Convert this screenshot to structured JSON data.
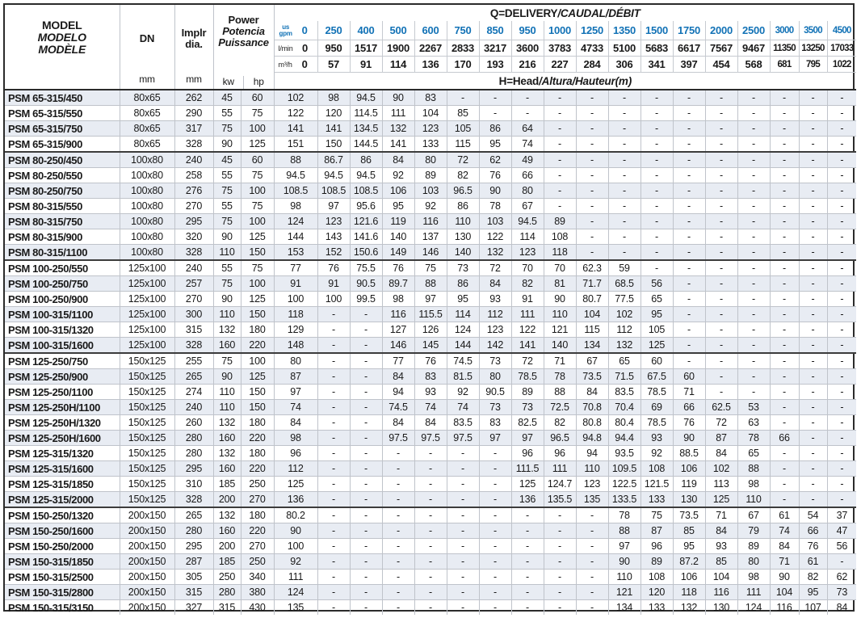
{
  "table": {
    "colors": {
      "accent_blue": "#1272b6",
      "stripe_row": "#e8ecf3"
    },
    "title_q": {
      "plain": "Q=DELIVERY",
      "italic": "/CAUDAL/DÉBIT"
    },
    "title_h": {
      "plain": "H=Head",
      "italic": "/Altura/Hauteur(m)"
    },
    "model_header": [
      "MODEL",
      "MODELO",
      "MODÈLE"
    ],
    "dn_label": "DN",
    "implr_label": [
      "Implr",
      "dia."
    ],
    "power_labels": [
      "Power",
      "Potencia",
      "Puissance"
    ],
    "unit_mm": "mm",
    "unit_kw": "kw",
    "unit_hp": "hp",
    "flow_units": {
      "gpm_top": "us",
      "gpm_bottom": "gpm",
      "lmin": "l/min",
      "m3h": "m³/h"
    },
    "flow_gpm": [
      "0",
      "250",
      "400",
      "500",
      "600",
      "750",
      "850",
      "950",
      "1000",
      "1250",
      "1350",
      "1500",
      "1750",
      "2000",
      "2500",
      "3000",
      "3500",
      "4500"
    ],
    "flow_lmin": [
      "0",
      "950",
      "1517",
      "1900",
      "2267",
      "2833",
      "3217",
      "3600",
      "3783",
      "4733",
      "5100",
      "5683",
      "6617",
      "7567",
      "9467",
      "11350",
      "13250",
      "17033"
    ],
    "flow_m3h": [
      "0",
      "57",
      "91",
      "114",
      "136",
      "170",
      "193",
      "216",
      "227",
      "284",
      "306",
      "341",
      "397",
      "454",
      "568",
      "681",
      "795",
      "1022"
    ],
    "rows": [
      {
        "model": "PSM 65-315/450",
        "dn": "80x65",
        "dia": "262",
        "kw": "45",
        "hp": "60",
        "group_start": false,
        "heads": [
          "102",
          "98",
          "94.5",
          "90",
          "83",
          "-",
          "-",
          "-",
          "-",
          "-",
          "-",
          "-",
          "-",
          "-",
          "-",
          "-",
          "-",
          "-"
        ]
      },
      {
        "model": "PSM 65-315/550",
        "dn": "80x65",
        "dia": "290",
        "kw": "55",
        "hp": "75",
        "group_start": false,
        "heads": [
          "122",
          "120",
          "114.5",
          "111",
          "104",
          "85",
          "-",
          "-",
          "-",
          "-",
          "-",
          "-",
          "-",
          "-",
          "-",
          "-",
          "-",
          "-"
        ]
      },
      {
        "model": "PSM 65-315/750",
        "dn": "80x65",
        "dia": "317",
        "kw": "75",
        "hp": "100",
        "group_start": false,
        "heads": [
          "141",
          "141",
          "134.5",
          "132",
          "123",
          "105",
          "86",
          "64",
          "-",
          "-",
          "-",
          "-",
          "-",
          "-",
          "-",
          "-",
          "-",
          "-"
        ]
      },
      {
        "model": "PSM 65-315/900",
        "dn": "80x65",
        "dia": "328",
        "kw": "90",
        "hp": "125",
        "group_start": false,
        "heads": [
          "151",
          "150",
          "144.5",
          "141",
          "133",
          "115",
          "95",
          "74",
          "-",
          "-",
          "-",
          "-",
          "-",
          "-",
          "-",
          "-",
          "-",
          "-"
        ]
      },
      {
        "model": "PSM 80-250/450",
        "dn": "100x80",
        "dia": "240",
        "kw": "45",
        "hp": "60",
        "group_start": true,
        "heads": [
          "88",
          "86.7",
          "86",
          "84",
          "80",
          "72",
          "62",
          "49",
          "-",
          "-",
          "-",
          "-",
          "-",
          "-",
          "-",
          "-",
          "-",
          "-"
        ]
      },
      {
        "model": "PSM 80-250/550",
        "dn": "100x80",
        "dia": "258",
        "kw": "55",
        "hp": "75",
        "group_start": false,
        "heads": [
          "94.5",
          "94.5",
          "94.5",
          "92",
          "89",
          "82",
          "76",
          "66",
          "-",
          "-",
          "-",
          "-",
          "-",
          "-",
          "-",
          "-",
          "-",
          "-"
        ]
      },
      {
        "model": "PSM 80-250/750",
        "dn": "100x80",
        "dia": "276",
        "kw": "75",
        "hp": "100",
        "group_start": false,
        "heads": [
          "108.5",
          "108.5",
          "108.5",
          "106",
          "103",
          "96.5",
          "90",
          "80",
          "-",
          "-",
          "-",
          "-",
          "-",
          "-",
          "-",
          "-",
          "-",
          "-"
        ]
      },
      {
        "model": "PSM 80-315/550",
        "dn": "100x80",
        "dia": "270",
        "kw": "55",
        "hp": "75",
        "group_start": false,
        "heads": [
          "98",
          "97",
          "95.6",
          "95",
          "92",
          "86",
          "78",
          "67",
          "-",
          "-",
          "-",
          "-",
          "-",
          "-",
          "-",
          "-",
          "-",
          "-"
        ]
      },
      {
        "model": "PSM 80-315/750",
        "dn": "100x80",
        "dia": "295",
        "kw": "75",
        "hp": "100",
        "group_start": false,
        "heads": [
          "124",
          "123",
          "121.6",
          "119",
          "116",
          "110",
          "103",
          "94.5",
          "89",
          "-",
          "-",
          "-",
          "-",
          "-",
          "-",
          "-",
          "-",
          "-"
        ]
      },
      {
        "model": "PSM 80-315/900",
        "dn": "100x80",
        "dia": "320",
        "kw": "90",
        "hp": "125",
        "group_start": false,
        "heads": [
          "144",
          "143",
          "141.6",
          "140",
          "137",
          "130",
          "122",
          "114",
          "108",
          "-",
          "-",
          "-",
          "-",
          "-",
          "-",
          "-",
          "-",
          "-"
        ]
      },
      {
        "model": "PSM 80-315/1100",
        "dn": "100x80",
        "dia": "328",
        "kw": "110",
        "hp": "150",
        "group_start": false,
        "heads": [
          "153",
          "152",
          "150.6",
          "149",
          "146",
          "140",
          "132",
          "123",
          "118",
          "-",
          "-",
          "-",
          "-",
          "-",
          "-",
          "-",
          "-",
          "-"
        ]
      },
      {
        "model": "PSM 100-250/550",
        "dn": "125x100",
        "dia": "240",
        "kw": "55",
        "hp": "75",
        "group_start": true,
        "heads": [
          "77",
          "76",
          "75.5",
          "76",
          "75",
          "73",
          "72",
          "70",
          "70",
          "62.3",
          "59",
          "-",
          "-",
          "-",
          "-",
          "-",
          "-",
          "-"
        ]
      },
      {
        "model": "PSM 100-250/750",
        "dn": "125x100",
        "dia": "257",
        "kw": "75",
        "hp": "100",
        "group_start": false,
        "heads": [
          "91",
          "91",
          "90.5",
          "89.7",
          "88",
          "86",
          "84",
          "82",
          "81",
          "71.7",
          "68.5",
          "56",
          "-",
          "-",
          "-",
          "-",
          "-",
          "-"
        ]
      },
      {
        "model": "PSM 100-250/900",
        "dn": "125x100",
        "dia": "270",
        "kw": "90",
        "hp": "125",
        "group_start": false,
        "heads": [
          "100",
          "100",
          "99.5",
          "98",
          "97",
          "95",
          "93",
          "91",
          "90",
          "80.7",
          "77.5",
          "65",
          "-",
          "-",
          "-",
          "-",
          "-",
          "-"
        ]
      },
      {
        "model": "PSM 100-315/1100",
        "dn": "125x100",
        "dia": "300",
        "kw": "110",
        "hp": "150",
        "group_start": false,
        "heads": [
          "118",
          "-",
          "-",
          "116",
          "115.5",
          "114",
          "112",
          "111",
          "110",
          "104",
          "102",
          "95",
          "-",
          "-",
          "-",
          "-",
          "-",
          "-"
        ]
      },
      {
        "model": "PSM 100-315/1320",
        "dn": "125x100",
        "dia": "315",
        "kw": "132",
        "hp": "180",
        "group_start": false,
        "heads": [
          "129",
          "-",
          "-",
          "127",
          "126",
          "124",
          "123",
          "122",
          "121",
          "115",
          "112",
          "105",
          "-",
          "-",
          "-",
          "-",
          "-",
          "-"
        ]
      },
      {
        "model": "PSM 100-315/1600",
        "dn": "125x100",
        "dia": "328",
        "kw": "160",
        "hp": "220",
        "group_start": false,
        "heads": [
          "148",
          "-",
          "-",
          "146",
          "145",
          "144",
          "142",
          "141",
          "140",
          "134",
          "132",
          "125",
          "-",
          "-",
          "-",
          "-",
          "-",
          "-"
        ]
      },
      {
        "model": "PSM 125-250/750",
        "dn": "150x125",
        "dia": "255",
        "kw": "75",
        "hp": "100",
        "group_start": true,
        "heads": [
          "80",
          "-",
          "-",
          "77",
          "76",
          "74.5",
          "73",
          "72",
          "71",
          "67",
          "65",
          "60",
          "-",
          "-",
          "-",
          "-",
          "-",
          "-"
        ]
      },
      {
        "model": "PSM 125-250/900",
        "dn": "150x125",
        "dia": "265",
        "kw": "90",
        "hp": "125",
        "group_start": false,
        "heads": [
          "87",
          "-",
          "-",
          "84",
          "83",
          "81.5",
          "80",
          "78.5",
          "78",
          "73.5",
          "71.5",
          "67.5",
          "60",
          "-",
          "-",
          "-",
          "-",
          "-"
        ]
      },
      {
        "model": "PSM 125-250/1100",
        "dn": "150x125",
        "dia": "274",
        "kw": "110",
        "hp": "150",
        "group_start": false,
        "heads": [
          "97",
          "-",
          "-",
          "94",
          "93",
          "92",
          "90.5",
          "89",
          "88",
          "84",
          "83.5",
          "78.5",
          "71",
          "-",
          "-",
          "-",
          "-",
          "-"
        ]
      },
      {
        "model": "PSM 125-250H/1100",
        "dn": "150x125",
        "dia": "240",
        "kw": "110",
        "hp": "150",
        "group_start": false,
        "heads": [
          "74",
          "-",
          "-",
          "74.5",
          "74",
          "74",
          "73",
          "73",
          "72.5",
          "70.8",
          "70.4",
          "69",
          "66",
          "62.5",
          "53",
          "-",
          "-",
          "-"
        ]
      },
      {
        "model": "PSM 125-250H/1320",
        "dn": "150x125",
        "dia": "260",
        "kw": "132",
        "hp": "180",
        "group_start": false,
        "heads": [
          "84",
          "-",
          "-",
          "84",
          "84",
          "83.5",
          "83",
          "82.5",
          "82",
          "80.8",
          "80.4",
          "78.5",
          "76",
          "72",
          "63",
          "-",
          "-",
          "-"
        ]
      },
      {
        "model": "PSM 125-250H/1600",
        "dn": "150x125",
        "dia": "280",
        "kw": "160",
        "hp": "220",
        "group_start": false,
        "heads": [
          "98",
          "-",
          "-",
          "97.5",
          "97.5",
          "97.5",
          "97",
          "97",
          "96.5",
          "94.8",
          "94.4",
          "93",
          "90",
          "87",
          "78",
          "66",
          "-",
          "-"
        ]
      },
      {
        "model": "PSM 125-315/1320",
        "dn": "150x125",
        "dia": "280",
        "kw": "132",
        "hp": "180",
        "group_start": false,
        "heads": [
          "96",
          "-",
          "-",
          "-",
          "-",
          "-",
          "-",
          "96",
          "96",
          "94",
          "93.5",
          "92",
          "88.5",
          "84",
          "65",
          "-",
          "-",
          "-"
        ]
      },
      {
        "model": "PSM 125-315/1600",
        "dn": "150x125",
        "dia": "295",
        "kw": "160",
        "hp": "220",
        "group_start": false,
        "heads": [
          "112",
          "-",
          "-",
          "-",
          "-",
          "-",
          "-",
          "111.5",
          "111",
          "110",
          "109.5",
          "108",
          "106",
          "102",
          "88",
          "-",
          "-",
          "-"
        ]
      },
      {
        "model": "PSM 125-315/1850",
        "dn": "150x125",
        "dia": "310",
        "kw": "185",
        "hp": "250",
        "group_start": false,
        "heads": [
          "125",
          "-",
          "-",
          "-",
          "-",
          "-",
          "-",
          "125",
          "124.7",
          "123",
          "122.5",
          "121.5",
          "119",
          "113",
          "98",
          "-",
          "-",
          "-"
        ]
      },
      {
        "model": "PSM 125-315/2000",
        "dn": "150x125",
        "dia": "328",
        "kw": "200",
        "hp": "270",
        "group_start": false,
        "heads": [
          "136",
          "-",
          "-",
          "-",
          "-",
          "-",
          "-",
          "136",
          "135.5",
          "135",
          "133.5",
          "133",
          "130",
          "125",
          "110",
          "-",
          "-",
          "-"
        ]
      },
      {
        "model": "PSM 150-250/1320",
        "dn": "200x150",
        "dia": "265",
        "kw": "132",
        "hp": "180",
        "group_start": true,
        "heads": [
          "80.2",
          "-",
          "-",
          "-",
          "-",
          "-",
          "-",
          "-",
          "-",
          "-",
          "78",
          "75",
          "73.5",
          "71",
          "67",
          "61",
          "54",
          "37"
        ]
      },
      {
        "model": "PSM 150-250/1600",
        "dn": "200x150",
        "dia": "280",
        "kw": "160",
        "hp": "220",
        "group_start": false,
        "heads": [
          "90",
          "-",
          "-",
          "-",
          "-",
          "-",
          "-",
          "-",
          "-",
          "-",
          "88",
          "87",
          "85",
          "84",
          "79",
          "74",
          "66",
          "47"
        ]
      },
      {
        "model": "PSM 150-250/2000",
        "dn": "200x150",
        "dia": "295",
        "kw": "200",
        "hp": "270",
        "group_start": false,
        "heads": [
          "100",
          "-",
          "-",
          "-",
          "-",
          "-",
          "-",
          "-",
          "-",
          "-",
          "97",
          "96",
          "95",
          "93",
          "89",
          "84",
          "76",
          "56"
        ]
      },
      {
        "model": "PSM 150-315/1850",
        "dn": "200x150",
        "dia": "287",
        "kw": "185",
        "hp": "250",
        "group_start": false,
        "heads": [
          "92",
          "-",
          "-",
          "-",
          "-",
          "-",
          "-",
          "-",
          "-",
          "-",
          "90",
          "89",
          "87.2",
          "85",
          "80",
          "71",
          "61",
          "-"
        ]
      },
      {
        "model": "PSM 150-315/2500",
        "dn": "200x150",
        "dia": "305",
        "kw": "250",
        "hp": "340",
        "group_start": false,
        "heads": [
          "111",
          "-",
          "-",
          "-",
          "-",
          "-",
          "-",
          "-",
          "-",
          "-",
          "110",
          "108",
          "106",
          "104",
          "98",
          "90",
          "82",
          "62"
        ]
      },
      {
        "model": "PSM 150-315/2800",
        "dn": "200x150",
        "dia": "315",
        "kw": "280",
        "hp": "380",
        "group_start": false,
        "heads": [
          "124",
          "-",
          "-",
          "-",
          "-",
          "-",
          "-",
          "-",
          "-",
          "-",
          "121",
          "120",
          "118",
          "116",
          "111",
          "104",
          "95",
          "73"
        ]
      },
      {
        "model": "PSM 150-315/3150",
        "dn": "200x150",
        "dia": "327",
        "kw": "315",
        "hp": "430",
        "group_start": false,
        "heads": [
          "135",
          "-",
          "-",
          "-",
          "-",
          "-",
          "-",
          "-",
          "-",
          "-",
          "134",
          "133",
          "132",
          "130",
          "124",
          "116",
          "107",
          "84"
        ]
      }
    ]
  }
}
